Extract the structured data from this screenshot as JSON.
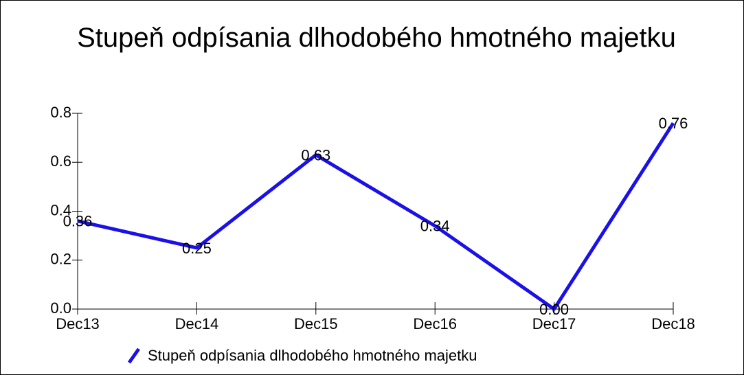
{
  "chart_data": {
    "type": "line",
    "title": "Stupeň odpísania dlhodobého hmotného majetku",
    "categories": [
      "Dec13",
      "Dec14",
      "Dec15",
      "Dec16",
      "Dec17",
      "Dec18"
    ],
    "series": [
      {
        "name": "Stupeň odpísania dlhodobého hmotného majetku",
        "color": "#1a10e8",
        "values": [
          0.36,
          0.25,
          0.63,
          0.34,
          0,
          0.76
        ],
        "value_labels": [
          "0.36",
          "0.25",
          "0.63",
          "0.34",
          "0.00",
          "0.76"
        ]
      }
    ],
    "ylim": [
      0,
      0.8
    ],
    "yticks": [
      {
        "value": 0,
        "label": "0.0"
      },
      0.2,
      0.4,
      0.6,
      0.8
    ],
    "legend": "bottom"
  }
}
